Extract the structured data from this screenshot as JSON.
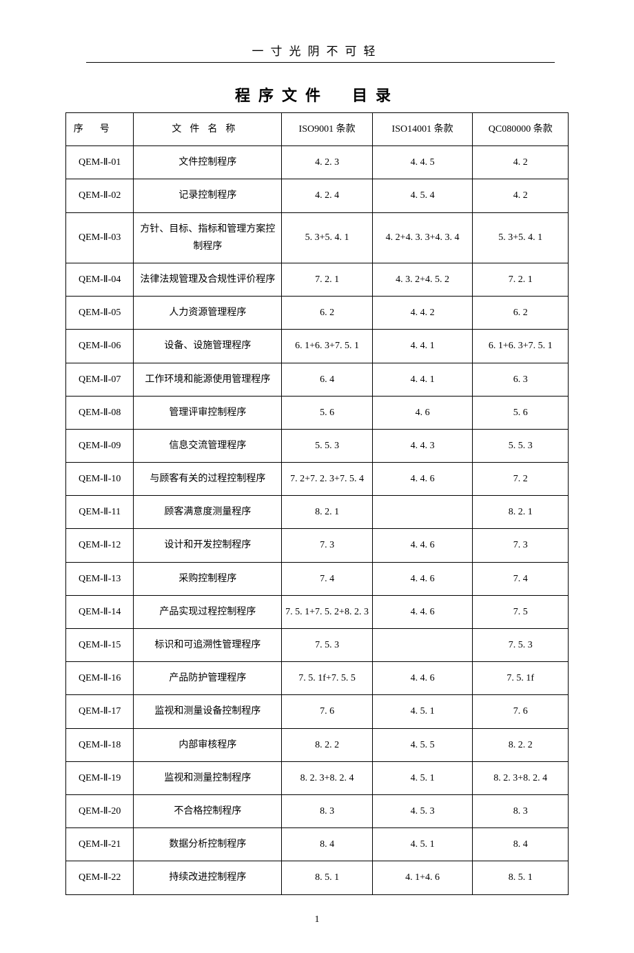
{
  "header_text": "一寸光阴不可轻",
  "title": "程序文件　目录",
  "columns": {
    "seq": "序号",
    "name": "文件名称",
    "c1": "ISO9001 条款",
    "c2": "ISO14001 条款",
    "c3": "QC080000 条款"
  },
  "rows": [
    {
      "seq": "QEM-Ⅱ-01",
      "name": "文件控制程序",
      "c1": "4. 2. 3",
      "c2": "4. 4. 5",
      "c3": "4. 2"
    },
    {
      "seq": "QEM-Ⅱ-02",
      "name": "记录控制程序",
      "c1": "4. 2. 4",
      "c2": "4. 5. 4",
      "c3": "4. 2"
    },
    {
      "seq": "QEM-Ⅱ-03",
      "name": "方针、目标、指标和管理方案控制程序",
      "c1": "5. 3+5. 4. 1",
      "c2": "4. 2+4. 3. 3+4. 3. 4",
      "c3": "5. 3+5. 4. 1"
    },
    {
      "seq": "QEM-Ⅱ-04",
      "name": "法律法规管理及合规性评价程序",
      "c1": "7. 2. 1",
      "c2": "4. 3. 2+4. 5. 2",
      "c3": "7. 2. 1"
    },
    {
      "seq": "QEM-Ⅱ-05",
      "name": "人力资源管理程序",
      "c1": "6. 2",
      "c2": "4. 4. 2",
      "c3": "6. 2"
    },
    {
      "seq": "QEM-Ⅱ-06",
      "name": "设备、设施管理程序",
      "c1": "6. 1+6. 3+7. 5. 1",
      "c2": "4. 4. 1",
      "c3": "6. 1+6. 3+7. 5. 1"
    },
    {
      "seq": "QEM-Ⅱ-07",
      "name": "工作环境和能源使用管理程序",
      "c1": "6. 4",
      "c2": "4. 4. 1",
      "c3": "6. 3"
    },
    {
      "seq": "QEM-Ⅱ-08",
      "name": "管理评审控制程序",
      "c1": "5. 6",
      "c2": "4. 6",
      "c3": "5. 6"
    },
    {
      "seq": "QEM-Ⅱ-09",
      "name": "信息交流管理程序",
      "c1": "5. 5. 3",
      "c2": "4. 4. 3",
      "c3": "5. 5. 3"
    },
    {
      "seq": "QEM-Ⅱ-10",
      "name": "与顾客有关的过程控制程序",
      "c1": "7. 2+7. 2. 3+7. 5. 4",
      "c2": "4. 4. 6",
      "c3": "7. 2"
    },
    {
      "seq": "QEM-Ⅱ-11",
      "name": "顾客满意度测量程序",
      "c1": "8. 2. 1",
      "c2": "",
      "c3": "8. 2. 1"
    },
    {
      "seq": "QEM-Ⅱ-12",
      "name": "设计和开发控制程序",
      "c1": "7. 3",
      "c2": "4. 4. 6",
      "c3": "7. 3"
    },
    {
      "seq": "QEM-Ⅱ-13",
      "name": "采购控制程序",
      "c1": "7. 4",
      "c2": "4. 4. 6",
      "c3": "7. 4"
    },
    {
      "seq": "QEM-Ⅱ-14",
      "name": "产品实现过程控制程序",
      "c1": "7. 5. 1+7. 5. 2+8. 2. 3",
      "c2": "4. 4. 6",
      "c3": "7. 5"
    },
    {
      "seq": "QEM-Ⅱ-15",
      "name": "标识和可追溯性管理程序",
      "c1": "7. 5. 3",
      "c2": "",
      "c3": "7. 5. 3"
    },
    {
      "seq": "QEM-Ⅱ-16",
      "name": "产品防护管理程序",
      "c1": "7. 5. 1f+7. 5. 5",
      "c2": "4. 4. 6",
      "c3": "7. 5. 1f"
    },
    {
      "seq": "QEM-Ⅱ-17",
      "name": "监视和测量设备控制程序",
      "c1": "7. 6",
      "c2": "4. 5. 1",
      "c3": "7. 6"
    },
    {
      "seq": "QEM-Ⅱ-18",
      "name": "内部审核程序",
      "c1": "8. 2. 2",
      "c2": "4. 5. 5",
      "c3": "8. 2. 2"
    },
    {
      "seq": "QEM-Ⅱ-19",
      "name": "监视和测量控制程序",
      "c1": "8. 2. 3+8. 2. 4",
      "c2": "4. 5. 1",
      "c3": "8. 2. 3+8. 2. 4"
    },
    {
      "seq": "QEM-Ⅱ-20",
      "name": "不合格控制程序",
      "c1": "8. 3",
      "c2": "4. 5. 3",
      "c3": "8. 3"
    },
    {
      "seq": "QEM-Ⅱ-21",
      "name": "数据分析控制程序",
      "c1": "8. 4",
      "c2": "4. 5. 1",
      "c3": "8. 4"
    },
    {
      "seq": "QEM-Ⅱ-22",
      "name": "持续改进控制程序",
      "c1": "8. 5. 1",
      "c2": "4. 1+4. 6",
      "c3": "8. 5. 1"
    }
  ],
  "footer_page": "1"
}
